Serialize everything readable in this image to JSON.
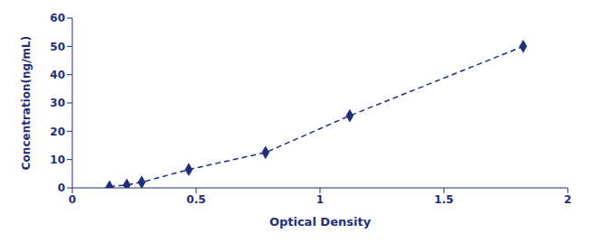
{
  "chart_data": {
    "type": "line",
    "xlabel": "Optical Density",
    "ylabel": "Concentration(ng/mL)",
    "color": "#1f2e7a",
    "xlim": [
      0,
      2.0
    ],
    "ylim": [
      0,
      60
    ],
    "xticks": [
      0,
      0.5,
      1,
      1.5,
      2
    ],
    "yticks": [
      0,
      10,
      20,
      30,
      40,
      50,
      60
    ],
    "series": [
      {
        "type": "line",
        "line_style": "dashed",
        "x": [
          0.15,
          0.22,
          0.28,
          0.47,
          0.78,
          1.12,
          1.82
        ],
        "values": [
          0.5,
          1.0,
          2.0,
          6.5,
          12.5,
          25.5,
          50.0
        ]
      },
      {
        "type": "scatter",
        "marker": "triangle",
        "x": [
          0.15
        ],
        "values": [
          0.5
        ]
      },
      {
        "type": "scatter",
        "marker": "diamond",
        "x": [
          0.22,
          0.28,
          0.47,
          0.78,
          1.12,
          1.82
        ],
        "values": [
          1.0,
          2.0,
          6.5,
          12.5,
          25.5,
          50.0
        ]
      }
    ]
  }
}
